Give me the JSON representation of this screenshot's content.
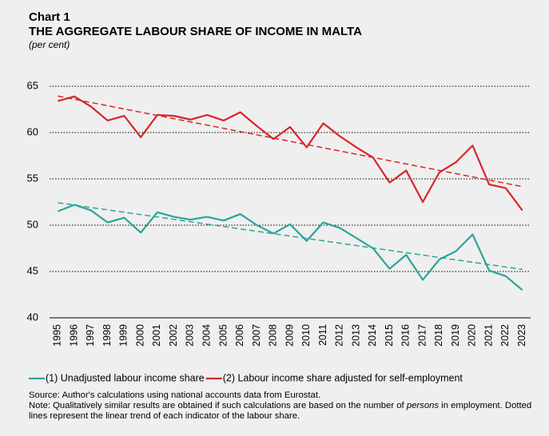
{
  "chart_data": {
    "type": "line",
    "label": "Chart 1",
    "title": "THE AGGREGATE LABOUR SHARE OF INCOME IN MALTA",
    "subtitle": "(per cent)",
    "categories": [
      "1995",
      "1996",
      "1997",
      "1998",
      "1999",
      "2000",
      "2001",
      "2002",
      "2003",
      "2004",
      "2005",
      "2006",
      "2007",
      "2008",
      "2009",
      "2010",
      "2011",
      "2012",
      "2013",
      "2014",
      "2015",
      "2016",
      "2017",
      "2018",
      "2019",
      "2020",
      "2021",
      "2022",
      "2023"
    ],
    "series": [
      {
        "name": "(1) Unadjusted labour income share",
        "color": "#2aa59b",
        "values": [
          51.5,
          52.2,
          51.6,
          50.3,
          50.8,
          49.2,
          51.4,
          50.9,
          50.6,
          50.9,
          50.5,
          51.2,
          50.0,
          49.1,
          50.1,
          48.3,
          50.3,
          49.7,
          48.6,
          47.5,
          45.3,
          46.8,
          44.1,
          46.3,
          47.2,
          49.0,
          45.1,
          44.5,
          43.0
        ]
      },
      {
        "name": "(2) Labour income share adjusted for self-employment",
        "color": "#d7262b",
        "values": [
          63.4,
          63.9,
          62.8,
          61.3,
          61.8,
          59.5,
          61.9,
          61.8,
          61.4,
          61.9,
          61.3,
          62.2,
          60.7,
          59.3,
          60.6,
          58.4,
          61.0,
          59.6,
          58.4,
          57.3,
          54.6,
          55.9,
          52.5,
          55.7,
          56.8,
          58.6,
          54.4,
          54.0,
          51.6
        ]
      }
    ],
    "ylim": [
      40,
      65
    ],
    "yticks": [
      40,
      45,
      50,
      55,
      60,
      65
    ],
    "grid": true,
    "trendlines": true,
    "source": "Source: Author's calculations using national accounts data from Eurostat.",
    "note_parts": [
      "Note: Qualitatively similar results are obtained if such calculations are based on the number of ",
      "persons",
      " in employment. Dotted lines represent the linear trend of each indicator of the labour share."
    ]
  }
}
